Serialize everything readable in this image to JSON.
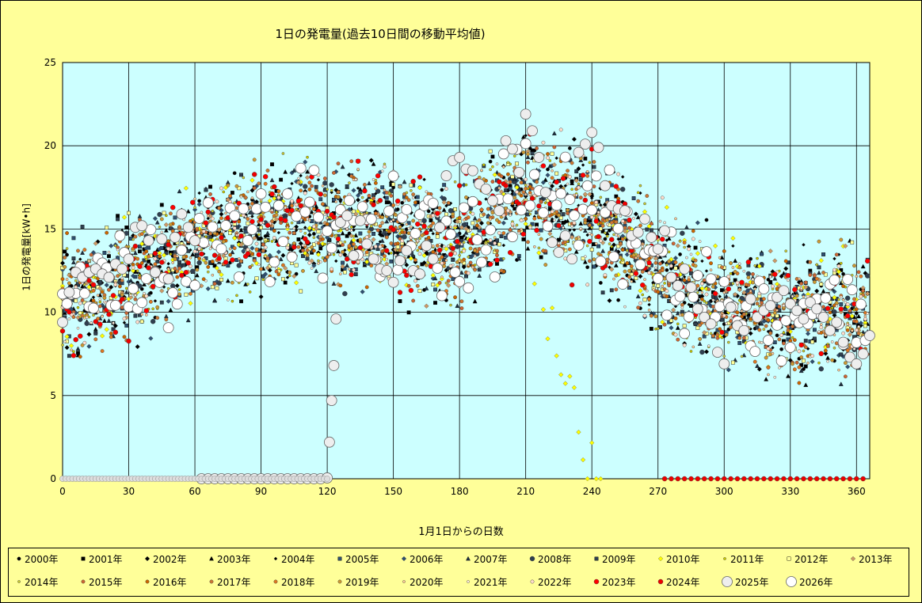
{
  "chart_data": {
    "type": "scatter",
    "title": "1日の発電量(過去10日間の移動平均値)",
    "xlabel": "1月1日からの日数",
    "ylabel": "1日の発電量[kW•h]",
    "xlim": [
      0,
      366
    ],
    "ylim": [
      0,
      25
    ],
    "xticks": [
      "0",
      "30",
      "60",
      "90",
      "120",
      "150",
      "180",
      "210",
      "240",
      "270",
      "300",
      "330",
      "360"
    ],
    "yticks": [
      "0",
      "5",
      "10",
      "15",
      "20",
      "25"
    ],
    "grid": true,
    "plot_background": "#CCFFFF",
    "legend_position": "bottom",
    "series": [
      {
        "name": "2000年",
        "marker": "circle",
        "color": "#000000",
        "size": "small"
      },
      {
        "name": "2001年",
        "marker": "square",
        "color": "#000000",
        "size": "small"
      },
      {
        "name": "2002年",
        "marker": "diamond",
        "color": "#000000",
        "size": "small"
      },
      {
        "name": "2003年",
        "marker": "triangle",
        "color": "#000000",
        "size": "small"
      },
      {
        "name": "2004年",
        "marker": "diamond",
        "color": "#000000",
        "size": "tiny"
      },
      {
        "name": "2005年",
        "marker": "square",
        "color": "#2F4F6F",
        "size": "small"
      },
      {
        "name": "2006年",
        "marker": "diamond",
        "color": "#2F4F6F",
        "size": "small"
      },
      {
        "name": "2007年",
        "marker": "triangle",
        "color": "#1F2F3F",
        "size": "small"
      },
      {
        "name": "2008年",
        "marker": "circle",
        "color": "#2F3F4F",
        "size": "medium"
      },
      {
        "name": "2009年",
        "marker": "square",
        "color": "#2F3F4F",
        "size": "small"
      },
      {
        "name": "2010年",
        "marker": "diamond",
        "color": "#FFFF00",
        "size": "small"
      },
      {
        "name": "2011年",
        "marker": "circle",
        "color": "#CCCC00",
        "size": "tiny"
      },
      {
        "name": "2012年",
        "marker": "square",
        "color": "#FFFF99",
        "size": "small"
      },
      {
        "name": "2013年",
        "marker": "diamond",
        "color": "#CC9966",
        "size": "small"
      },
      {
        "name": "2014年",
        "marker": "circle",
        "color": "#CCCC33",
        "size": "tiny"
      },
      {
        "name": "2015年",
        "marker": "circle",
        "color": "#CC6633",
        "size": "small"
      },
      {
        "name": "2016年",
        "marker": "circle",
        "color": "#CC6600",
        "size": "small"
      },
      {
        "name": "2017年",
        "marker": "circle",
        "color": "#CC7733",
        "size": "small"
      },
      {
        "name": "2018年",
        "marker": "circle",
        "color": "#DD7722",
        "size": "small"
      },
      {
        "name": "2019年",
        "marker": "circle",
        "color": "#CC9933",
        "size": "small"
      },
      {
        "name": "2020年",
        "marker": "circle",
        "color": "#FFCC99",
        "size": "tiny"
      },
      {
        "name": "2021年",
        "marker": "circle",
        "color": "#FFEEDD",
        "size": "tiny"
      },
      {
        "name": "2022年",
        "marker": "circle",
        "color": "#FFDDCC",
        "size": "small"
      },
      {
        "name": "2023年",
        "marker": "circle",
        "color": "#FF0000",
        "size": "medium"
      },
      {
        "name": "2024年",
        "marker": "circle",
        "color": "#EE0000",
        "size": "medium"
      },
      {
        "name": "2025年",
        "marker": "circle",
        "color": "#EEEEEE",
        "size": "large"
      },
      {
        "name": "2026年",
        "marker": "circle",
        "color": "#FFFFFF",
        "size": "large"
      }
    ],
    "highlight_2025": {
      "name": "2025年",
      "x": [
        0,
        3,
        6,
        9,
        12,
        15,
        18,
        21,
        24,
        27,
        30,
        33,
        36,
        39,
        42,
        45,
        48,
        51,
        54,
        57,
        60,
        63,
        66,
        69,
        72,
        75,
        78,
        81,
        84,
        87,
        90,
        93,
        96,
        99,
        102,
        105,
        108,
        111,
        114,
        117,
        120,
        121,
        122,
        123,
        124,
        126,
        129,
        132,
        135,
        138,
        141,
        144,
        147,
        150,
        153,
        156,
        159,
        162,
        165,
        168,
        171,
        174,
        177,
        180,
        183,
        186,
        189,
        192,
        195,
        198,
        201,
        204,
        207,
        210,
        213,
        216,
        219,
        222,
        225,
        228,
        231,
        234,
        237,
        240,
        243,
        246,
        249,
        252,
        255,
        258,
        261,
        264,
        267,
        270,
        273,
        276,
        279,
        282,
        285,
        288,
        291,
        294,
        297,
        300,
        303,
        306,
        309,
        312,
        315,
        318,
        321,
        324,
        327,
        330,
        333,
        336,
        339,
        342,
        345,
        348,
        351,
        354,
        357,
        360,
        363,
        366
      ],
      "y": [
        9.4,
        11.2,
        12.4,
        12.1,
        12.4,
        12.6,
        12.3,
        12.1,
        12.9,
        12.6,
        13.2,
        15.1,
        15.2,
        14.3,
        12.4,
        14.4,
        12.0,
        14.5,
        15.9,
        15.1,
        14.3,
        0,
        0,
        0,
        0,
        0,
        0,
        0,
        0,
        0,
        0,
        0,
        0,
        0,
        0,
        0,
        0,
        0,
        0,
        0,
        0.05,
        2.2,
        4.7,
        6.8,
        9.6,
        15.4,
        15.8,
        13.4,
        15.5,
        14.1,
        13.2,
        12.6,
        12.5,
        11.8,
        13.1,
        13.7,
        12.5,
        12.3,
        14.0,
        13.2,
        15.1,
        18.2,
        19.1,
        19.3,
        18.6,
        18.5,
        17.7,
        17.4,
        16.7,
        16.1,
        20.3,
        19.8,
        18.4,
        21.9,
        20.9,
        19.3,
        17.2,
        14.2,
        13.6,
        14.6,
        13.2,
        19.6,
        20.1,
        20.8,
        19.9,
        17.6,
        16.4,
        16.2,
        16.1,
        14.6,
        14.8,
        15.6,
        14.5,
        13.8,
        14.9,
        12.1,
        11.6,
        12.6,
        11.5,
        10.2,
        9.7,
        9.3,
        7.6,
        6.9,
        10.3,
        9.2,
        8.9,
        10.8,
        9.7,
        10.1,
        10.4,
        10.9,
        11.3,
        10.5,
        10.1,
        9.6,
        10.6,
        10.2,
        9.7,
        8.9,
        9.4,
        8.2,
        7.3,
        6.9,
        7.5,
        8.6
      ]
    }
  }
}
